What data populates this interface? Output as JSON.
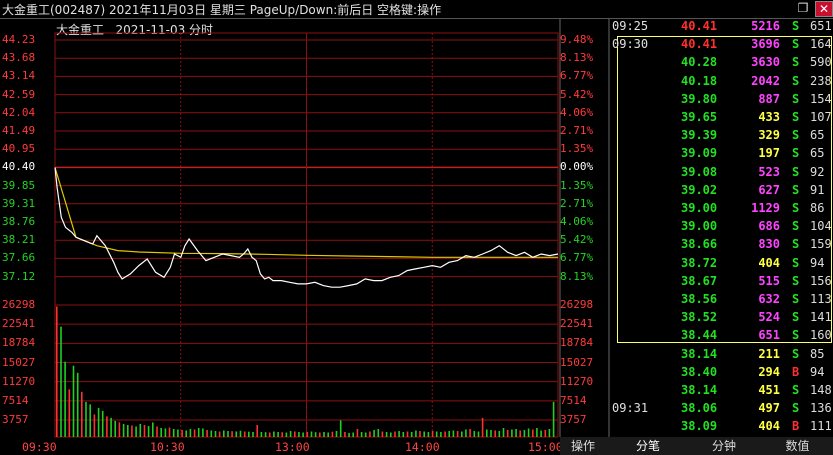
{
  "window": {
    "title": "大金重工(002487)  2021年11月03日 星期三 PageUp/Down:前后日 空格键:操作",
    "restore_label": "❐",
    "close_label": "✕"
  },
  "chart_header": {
    "stock": "大金重工",
    "date_label": "2021-11-03 分时"
  },
  "colors": {
    "up": "#ff3b3b",
    "down": "#25d325",
    "base": "#ffffff",
    "price_line": "#ffffff",
    "avg_line": "#e6c600",
    "grid": "#8b1010"
  },
  "chart_data": {
    "type": "line",
    "title": "",
    "prev_close": 40.4,
    "price_axis": [
      "44.23",
      "43.68",
      "43.14",
      "42.59",
      "42.04",
      "41.49",
      "40.95",
      "40.40",
      "39.85",
      "39.31",
      "38.76",
      "38.21",
      "37.66",
      "37.12"
    ],
    "pct_axis": [
      "9.48%",
      "8.13%",
      "6.77%",
      "5.42%",
      "4.06%",
      "2.71%",
      "1.35%",
      "0.00%",
      "1.35%",
      "2.71%",
      "4.06%",
      "5.42%",
      "6.77%",
      "8.13%"
    ],
    "volume_axis": [
      "26298",
      "22541",
      "18784",
      "15027",
      "11270",
      "7514",
      "3757"
    ],
    "time_axis": [
      "09:30",
      "10:30",
      "13:00",
      "14:00",
      "15:00"
    ],
    "ylim": [
      36.83,
      44.23
    ],
    "series": [
      {
        "x": [
          0,
          1,
          3,
          5,
          8,
          10,
          14,
          18,
          20,
          24,
          28,
          30,
          32,
          36,
          40,
          44,
          48,
          52,
          55,
          57,
          60,
          62,
          64,
          68,
          72,
          76,
          80,
          84,
          88,
          90,
          92,
          94,
          96,
          98,
          100,
          102,
          104,
          108,
          112,
          116,
          120,
          124,
          128,
          132,
          136,
          140,
          144,
          148,
          152,
          156,
          160,
          164,
          168,
          172,
          176,
          180,
          184,
          188,
          192,
          196,
          200,
          204,
          208,
          212,
          216,
          220,
          224,
          228,
          232,
          236,
          240
        ],
        "values": [
          40.4,
          39.8,
          38.9,
          38.6,
          38.45,
          38.3,
          38.2,
          38.1,
          38.35,
          38.05,
          37.55,
          37.25,
          37.05,
          37.2,
          37.45,
          37.65,
          37.25,
          37.1,
          37.4,
          37.8,
          37.7,
          38.05,
          38.25,
          37.9,
          37.6,
          37.7,
          37.8,
          37.75,
          37.7,
          37.8,
          37.95,
          37.7,
          37.6,
          37.2,
          37.05,
          37.1,
          37.0,
          37.0,
          36.95,
          36.9,
          36.9,
          36.95,
          36.85,
          36.8,
          36.8,
          36.85,
          36.9,
          37.05,
          37.0,
          37.0,
          37.1,
          37.15,
          37.3,
          37.35,
          37.4,
          37.45,
          37.4,
          37.55,
          37.6,
          37.75,
          37.7,
          37.8,
          37.9,
          38.05,
          37.85,
          37.75,
          37.85,
          37.7,
          37.8,
          37.75,
          37.8
        ]
      },
      {
        "x": [
          0,
          10,
          20,
          30,
          40,
          60,
          80,
          100,
          120,
          140,
          160,
          180,
          200,
          220,
          240
        ],
        "values": [
          40.4,
          38.3,
          38.05,
          37.9,
          37.86,
          37.82,
          37.81,
          37.79,
          37.76,
          37.74,
          37.72,
          37.7,
          37.7,
          37.7,
          37.7
        ]
      }
    ],
    "volume": [
      26000,
      22000,
      15000,
      9500,
      14200,
      12800,
      9000,
      7000,
      6500,
      4500,
      5800,
      5200,
      4100,
      3800,
      3200,
      2900,
      2600,
      2400,
      2300,
      2100,
      2600,
      2400,
      2200,
      2900,
      2100,
      1800,
      1700,
      1900,
      1600,
      1500,
      1400,
      1300,
      1600,
      1500,
      1800,
      1700,
      1400,
      1300,
      1200,
      1100,
      1300,
      1200,
      1150,
      1100,
      1250,
      1100,
      1050,
      1000,
      2400,
      1000,
      950,
      900,
      1100,
      1000,
      950,
      900,
      1200,
      1100,
      1000,
      900,
      1000,
      1100,
      950,
      900,
      1000,
      900,
      1050,
      1200,
      3300,
      1000,
      800,
      900,
      1600,
      1000,
      900,
      1100,
      1400,
      1600,
      1100,
      1000,
      900,
      1100,
      1200,
      1000,
      1100,
      1000,
      1300,
      1200,
      1100,
      1000,
      1200,
      1100,
      1000,
      1100,
      1200,
      1300,
      1200,
      1100,
      1500,
      1600,
      1200,
      1100,
      3800,
      1500,
      1400,
      1300,
      1200,
      1800,
      1400,
      1500,
      1600,
      1300,
      1400,
      1700,
      1500,
      1800,
      1300,
      1400,
      1600,
      7000
    ],
    "grid": true
  },
  "ticks": [
    {
      "time": "09:25",
      "price": "40.41",
      "vol": "5216",
      "side": "S",
      "num": "651"
    },
    {
      "time": "09:30",
      "price": "40.41",
      "vol": "3696",
      "side": "S",
      "num": "164"
    },
    {
      "time": "",
      "price": "40.28",
      "vol": "3630",
      "side": "S",
      "num": "590"
    },
    {
      "time": "",
      "price": "40.18",
      "vol": "2042",
      "side": "S",
      "num": "238"
    },
    {
      "time": "",
      "price": "39.80",
      "vol": "887",
      "side": "S",
      "num": "154"
    },
    {
      "time": "",
      "price": "39.65",
      "vol": "433",
      "side": "S",
      "num": "107"
    },
    {
      "time": "",
      "price": "39.39",
      "vol": "329",
      "side": "S",
      "num": "65"
    },
    {
      "time": "",
      "price": "39.09",
      "vol": "197",
      "side": "S",
      "num": "65"
    },
    {
      "time": "",
      "price": "39.08",
      "vol": "523",
      "side": "S",
      "num": "92"
    },
    {
      "time": "",
      "price": "39.02",
      "vol": "627",
      "side": "S",
      "num": "91"
    },
    {
      "time": "",
      "price": "39.00",
      "vol": "1129",
      "side": "S",
      "num": "86"
    },
    {
      "time": "",
      "price": "39.00",
      "vol": "686",
      "side": "S",
      "num": "104"
    },
    {
      "time": "",
      "price": "38.66",
      "vol": "830",
      "side": "S",
      "num": "159"
    },
    {
      "time": "",
      "price": "38.72",
      "vol": "404",
      "side": "S",
      "num": "94"
    },
    {
      "time": "",
      "price": "38.67",
      "vol": "515",
      "side": "S",
      "num": "156"
    },
    {
      "time": "",
      "price": "38.56",
      "vol": "632",
      "side": "S",
      "num": "113"
    },
    {
      "time": "",
      "price": "38.52",
      "vol": "524",
      "side": "S",
      "num": "141"
    },
    {
      "time": "",
      "price": "38.44",
      "vol": "651",
      "side": "S",
      "num": "160"
    },
    {
      "time": "",
      "price": "38.14",
      "vol": "211",
      "side": "S",
      "num": "85"
    },
    {
      "time": "",
      "price": "38.40",
      "vol": "294",
      "side": "B",
      "num": "94"
    },
    {
      "time": "",
      "price": "38.14",
      "vol": "451",
      "side": "S",
      "num": "148"
    },
    {
      "time": "09:31",
      "price": "38.06",
      "vol": "497",
      "side": "S",
      "num": "136"
    },
    {
      "time": "",
      "price": "38.09",
      "vol": "404",
      "side": "B",
      "num": "111"
    }
  ],
  "tabs": {
    "operate": "操作",
    "ticks": "分笔",
    "minute": "分钟",
    "value": "数值"
  }
}
